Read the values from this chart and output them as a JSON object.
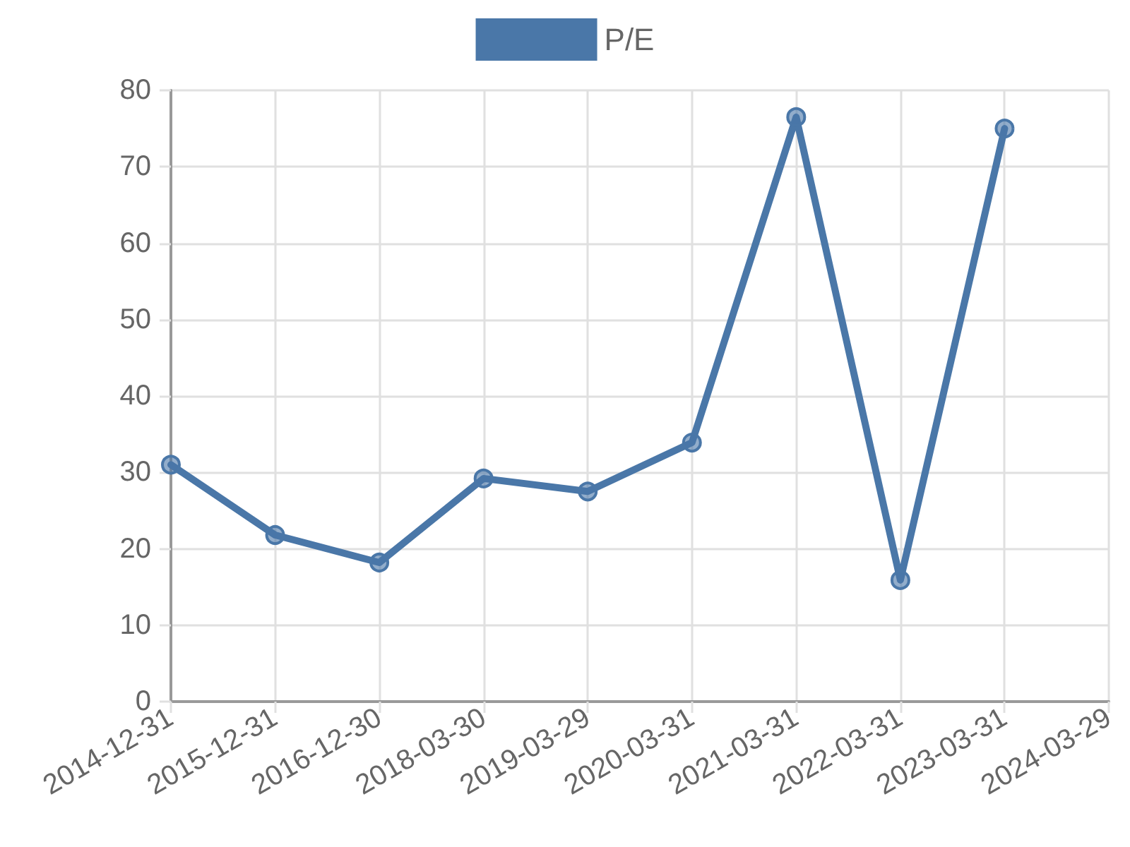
{
  "chart_data": {
    "type": "line",
    "categories": [
      "2014-12-31",
      "2015-12-31",
      "2016-12-30",
      "2018-03-30",
      "2019-03-29",
      "2020-03-31",
      "2021-03-31",
      "2022-03-31",
      "2023-03-31",
      "2024-03-29"
    ],
    "series": [
      {
        "name": "P/E",
        "color": "#4a77a8",
        "values": [
          31,
          21.8,
          18.2,
          29.2,
          27.5,
          33.9,
          76.5,
          15.9,
          75.0,
          null
        ]
      }
    ],
    "ylim": [
      0,
      80
    ],
    "yticks": [
      0,
      10,
      20,
      30,
      40,
      50,
      60,
      70,
      80
    ],
    "grid": true,
    "legend": "top",
    "marker": "circle",
    "line_style": "solid"
  }
}
